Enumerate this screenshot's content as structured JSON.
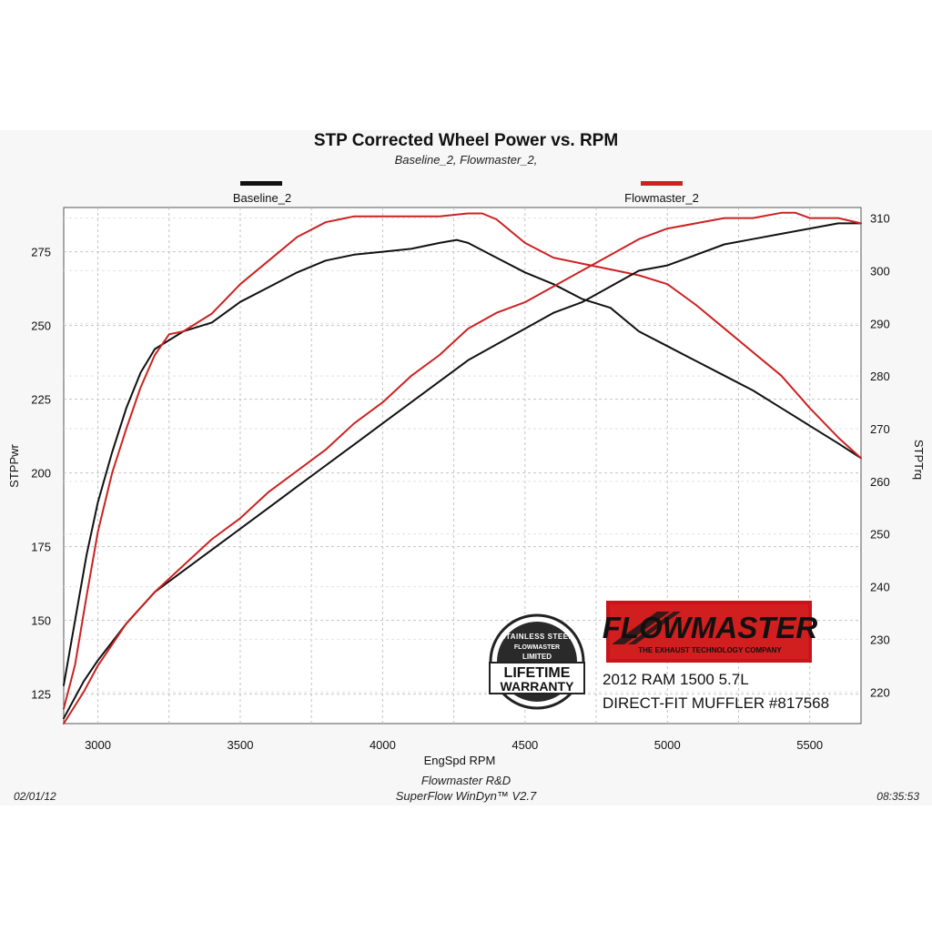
{
  "chart_data": {
    "type": "line",
    "title": "STP Corrected Wheel Power vs. RPM",
    "subtitle": "Baseline_2, Flowmaster_2,",
    "xlabel": "EngSpd  RPM",
    "ylabel_left": "STPPwr",
    "ylabel_right": "STPTrq",
    "xlim": [
      2880,
      5680
    ],
    "ylim_left": [
      115,
      290
    ],
    "ylim_right": [
      214,
      312
    ],
    "x_ticks": [
      3000,
      3500,
      4000,
      4500,
      5000,
      5500
    ],
    "y_ticks_left": [
      125,
      150,
      175,
      200,
      225,
      250,
      275
    ],
    "y_ticks_right": [
      220,
      230,
      240,
      250,
      260,
      270,
      280,
      290,
      300,
      310
    ],
    "grid": true,
    "legend": "top",
    "series": [
      {
        "name": "Baseline_2",
        "color": "#111111",
        "axis": "left",
        "quantity": "power",
        "x": [
          2880,
          2920,
          2960,
          3000,
          3050,
          3100,
          3150,
          3200,
          3300,
          3400,
          3500,
          3600,
          3700,
          3800,
          3900,
          4000,
          4100,
          4200,
          4260,
          4300,
          4400,
          4500,
          4600,
          4700,
          4800,
          4900,
          5000,
          5100,
          5200,
          5300,
          5400,
          5500,
          5600,
          5680
        ],
        "values": [
          128,
          150,
          172,
          190,
          207,
          222,
          234,
          242,
          248,
          251,
          258,
          263,
          268,
          272,
          274,
          275,
          276,
          278,
          279,
          278,
          273,
          268,
          264,
          259,
          256,
          248,
          243,
          238,
          233,
          228,
          222,
          216,
          210,
          205
        ]
      },
      {
        "name": "Flowmaster_2",
        "color": "#cc2222",
        "axis": "left",
        "quantity": "power",
        "x": [
          2880,
          2920,
          2960,
          3000,
          3050,
          3100,
          3150,
          3200,
          3250,
          3300,
          3400,
          3500,
          3600,
          3700,
          3800,
          3900,
          4000,
          4100,
          4200,
          4300,
          4350,
          4400,
          4500,
          4600,
          4700,
          4800,
          4900,
          5000,
          5100,
          5200,
          5300,
          5400,
          5500,
          5600,
          5680
        ],
        "values": [
          120,
          135,
          158,
          180,
          200,
          215,
          229,
          240,
          247,
          248,
          254,
          264,
          272,
          280,
          285,
          287,
          287,
          287,
          287,
          288,
          288,
          286,
          278,
          273,
          271,
          269,
          267,
          264,
          257,
          249,
          241,
          233,
          222,
          212,
          205
        ]
      },
      {
        "name": "Baseline_2",
        "color": "#111111",
        "axis": "right",
        "quantity": "torque",
        "x": [
          2880,
          2950,
          3000,
          3100,
          3200,
          3300,
          3400,
          3500,
          3600,
          3700,
          3800,
          3900,
          4000,
          4100,
          4200,
          4300,
          4400,
          4500,
          4600,
          4700,
          4800,
          4900,
          5000,
          5100,
          5200,
          5300,
          5400,
          5500,
          5600,
          5680
        ],
        "values": [
          215,
          222,
          226,
          233,
          239,
          243,
          247,
          251,
          255,
          259,
          263,
          267,
          271,
          275,
          279,
          283,
          286,
          289,
          292,
          294,
          297,
          300,
          301,
          303,
          305,
          306,
          307,
          308,
          309,
          309
        ]
      },
      {
        "name": "Flowmaster_2",
        "color": "#cc2222",
        "axis": "right",
        "quantity": "torque",
        "x": [
          2880,
          2950,
          3000,
          3100,
          3200,
          3300,
          3400,
          3500,
          3600,
          3700,
          3800,
          3900,
          4000,
          4100,
          4200,
          4300,
          4400,
          4500,
          4600,
          4700,
          4800,
          4900,
          5000,
          5100,
          5200,
          5300,
          5400,
          5450,
          5500,
          5600,
          5680
        ],
        "values": [
          214,
          220,
          225,
          233,
          239,
          244,
          249,
          253,
          258,
          262,
          266,
          271,
          275,
          280,
          284,
          289,
          292,
          294,
          297,
          300,
          303,
          306,
          308,
          309,
          310,
          310,
          311,
          311,
          310,
          310,
          309
        ]
      }
    ]
  },
  "footer": {
    "date": "02/01/12",
    "line1": "Flowmaster R&D",
    "line2": "SuperFlow WinDyn™  V2.7",
    "time": "08:35:53"
  },
  "branding": {
    "logo": "FLOWMASTER",
    "tagline": "THE EXHAUST TECHNOLOGY COMPANY",
    "caption_line1": "2012 RAM 1500 5.7L",
    "caption_line2": "DIRECT-FIT MUFFLER #817568",
    "badge_top": "STAINLESS STEEL",
    "badge_mid": "LIMITED",
    "badge_line1": "LIFETIME",
    "badge_line2": "WARRANTY",
    "badge_logo": "FLOWMASTER"
  }
}
